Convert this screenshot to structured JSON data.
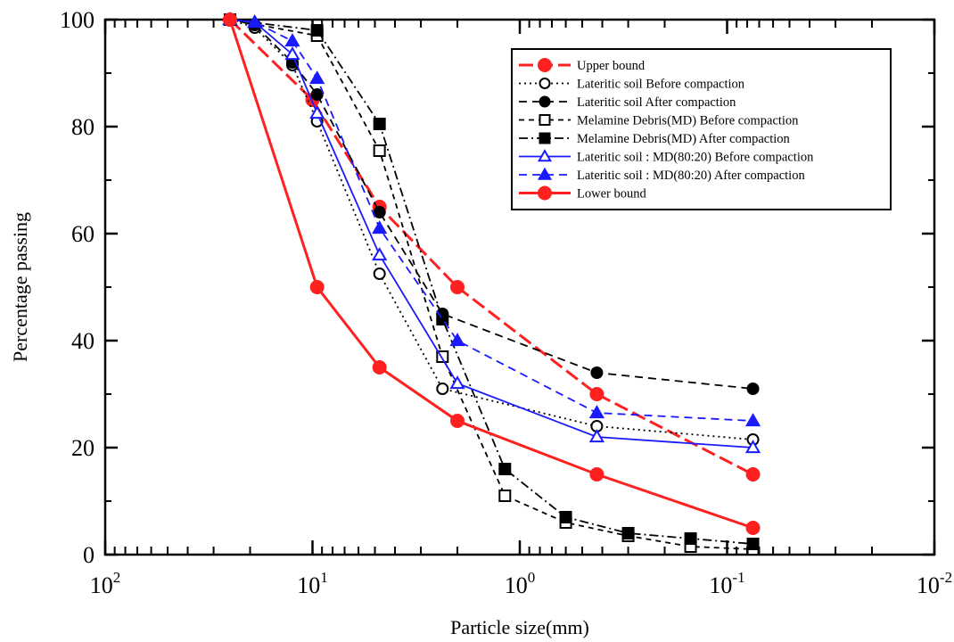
{
  "chart_data": {
    "type": "line",
    "title": "",
    "xlabel": "Particle size(mm)",
    "ylabel": "Percentage passing",
    "x_scale": "log",
    "x_reversed": true,
    "xlim": [
      100,
      0.01
    ],
    "ylim": [
      0,
      100
    ],
    "x_ticks": [
      {
        "base": "10",
        "exp": "2"
      },
      {
        "base": "10",
        "exp": "1"
      },
      {
        "base": "10",
        "exp": "0"
      },
      {
        "base": "10",
        "exp": "-1"
      },
      {
        "base": "10",
        "exp": "-2"
      }
    ],
    "y_ticks": [
      "0",
      "20",
      "40",
      "60",
      "80",
      "100"
    ],
    "grid": false,
    "legend_position": "top-right",
    "series": [
      {
        "name": "Upper bound",
        "color": "#ff2020",
        "dash": "long-dash",
        "marker": "circle-filled",
        "x": [
          25,
          10,
          4.75,
          2.0,
          0.425,
          0.075
        ],
        "y": [
          100,
          85,
          65,
          50,
          30,
          15
        ]
      },
      {
        "name": "Lateritic soil Before compaction",
        "color": "#000000",
        "dash": "dot",
        "marker": "circle-open",
        "x": [
          25,
          19,
          12.5,
          9.5,
          4.75,
          2.36,
          0.425,
          0.075
        ],
        "y": [
          100,
          98.5,
          91.5,
          81,
          52.5,
          31,
          24,
          21.5
        ]
      },
      {
        "name": "Lateritic soil After compaction",
        "color": "#000000",
        "dash": "dash",
        "marker": "circle-filled",
        "x": [
          25,
          19,
          12.5,
          9.5,
          4.75,
          2.36,
          0.425,
          0.075
        ],
        "y": [
          100,
          99,
          92,
          86,
          64,
          45,
          34,
          31
        ]
      },
      {
        "name": "Melamine Debris(MD) Before compaction",
        "color": "#000000",
        "dash": "short-dash",
        "marker": "square-open",
        "x": [
          25,
          9.5,
          4.75,
          2.36,
          1.18,
          0.6,
          0.3,
          0.15,
          0.075
        ],
        "y": [
          100,
          97,
          75.5,
          37,
          11,
          6,
          3.5,
          1.5,
          1
        ]
      },
      {
        "name": "Melamine Debris(MD) After compaction",
        "color": "#000000",
        "dash": "dash-dot",
        "marker": "square-filled",
        "x": [
          25,
          9.5,
          4.75,
          2.36,
          1.18,
          0.6,
          0.3,
          0.15,
          0.075
        ],
        "y": [
          100,
          98,
          80.5,
          44,
          16,
          7,
          4,
          3,
          2
        ]
      },
      {
        "name": "Lateritic soil : MD(80:20) Before compaction",
        "color": "#1a1aff",
        "dash": "solid",
        "marker": "triangle-open",
        "x": [
          25,
          19,
          12.5,
          9.5,
          4.75,
          2.0,
          0.425,
          0.075
        ],
        "y": [
          100,
          99.5,
          93.5,
          82.5,
          56,
          32,
          22,
          20
        ]
      },
      {
        "name": "Lateritic soil : MD(80:20) After compaction",
        "color": "#1a1aff",
        "dash": "dash",
        "marker": "triangle-filled",
        "x": [
          25,
          19,
          12.5,
          9.5,
          4.75,
          2.0,
          0.425,
          0.075
        ],
        "y": [
          100,
          99.5,
          96,
          89,
          61,
          40,
          26.5,
          25
        ]
      },
      {
        "name": "Lower bound",
        "color": "#ff2020",
        "dash": "solid",
        "marker": "circle-filled",
        "x": [
          25,
          9.5,
          4.75,
          2.0,
          0.425,
          0.075
        ],
        "y": [
          100,
          50,
          35,
          25,
          15,
          5
        ]
      }
    ]
  }
}
